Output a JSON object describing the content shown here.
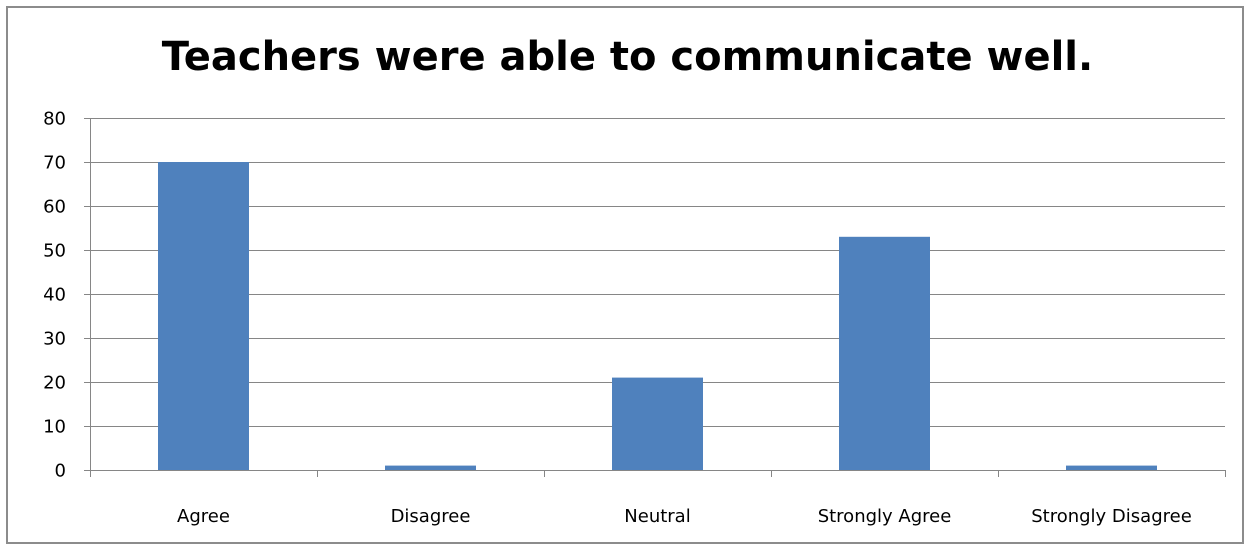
{
  "chart_data": {
    "type": "bar",
    "title": "Teachers were able to communicate well.",
    "xlabel": "",
    "ylabel": "",
    "categories": [
      "Agree",
      "Disagree",
      "Neutral",
      "Strongly Agree",
      "Strongly Disagree"
    ],
    "values": [
      70,
      1,
      21,
      53,
      1
    ],
    "ylim": [
      0,
      80
    ],
    "yticks": [
      "0",
      "10",
      "20",
      "30",
      "40",
      "50",
      "60",
      "70",
      "80"
    ],
    "grid": true,
    "legend": "none",
    "colors": {
      "bar": "#4f81bd",
      "grid": "#868686",
      "axis": "#868686"
    }
  }
}
